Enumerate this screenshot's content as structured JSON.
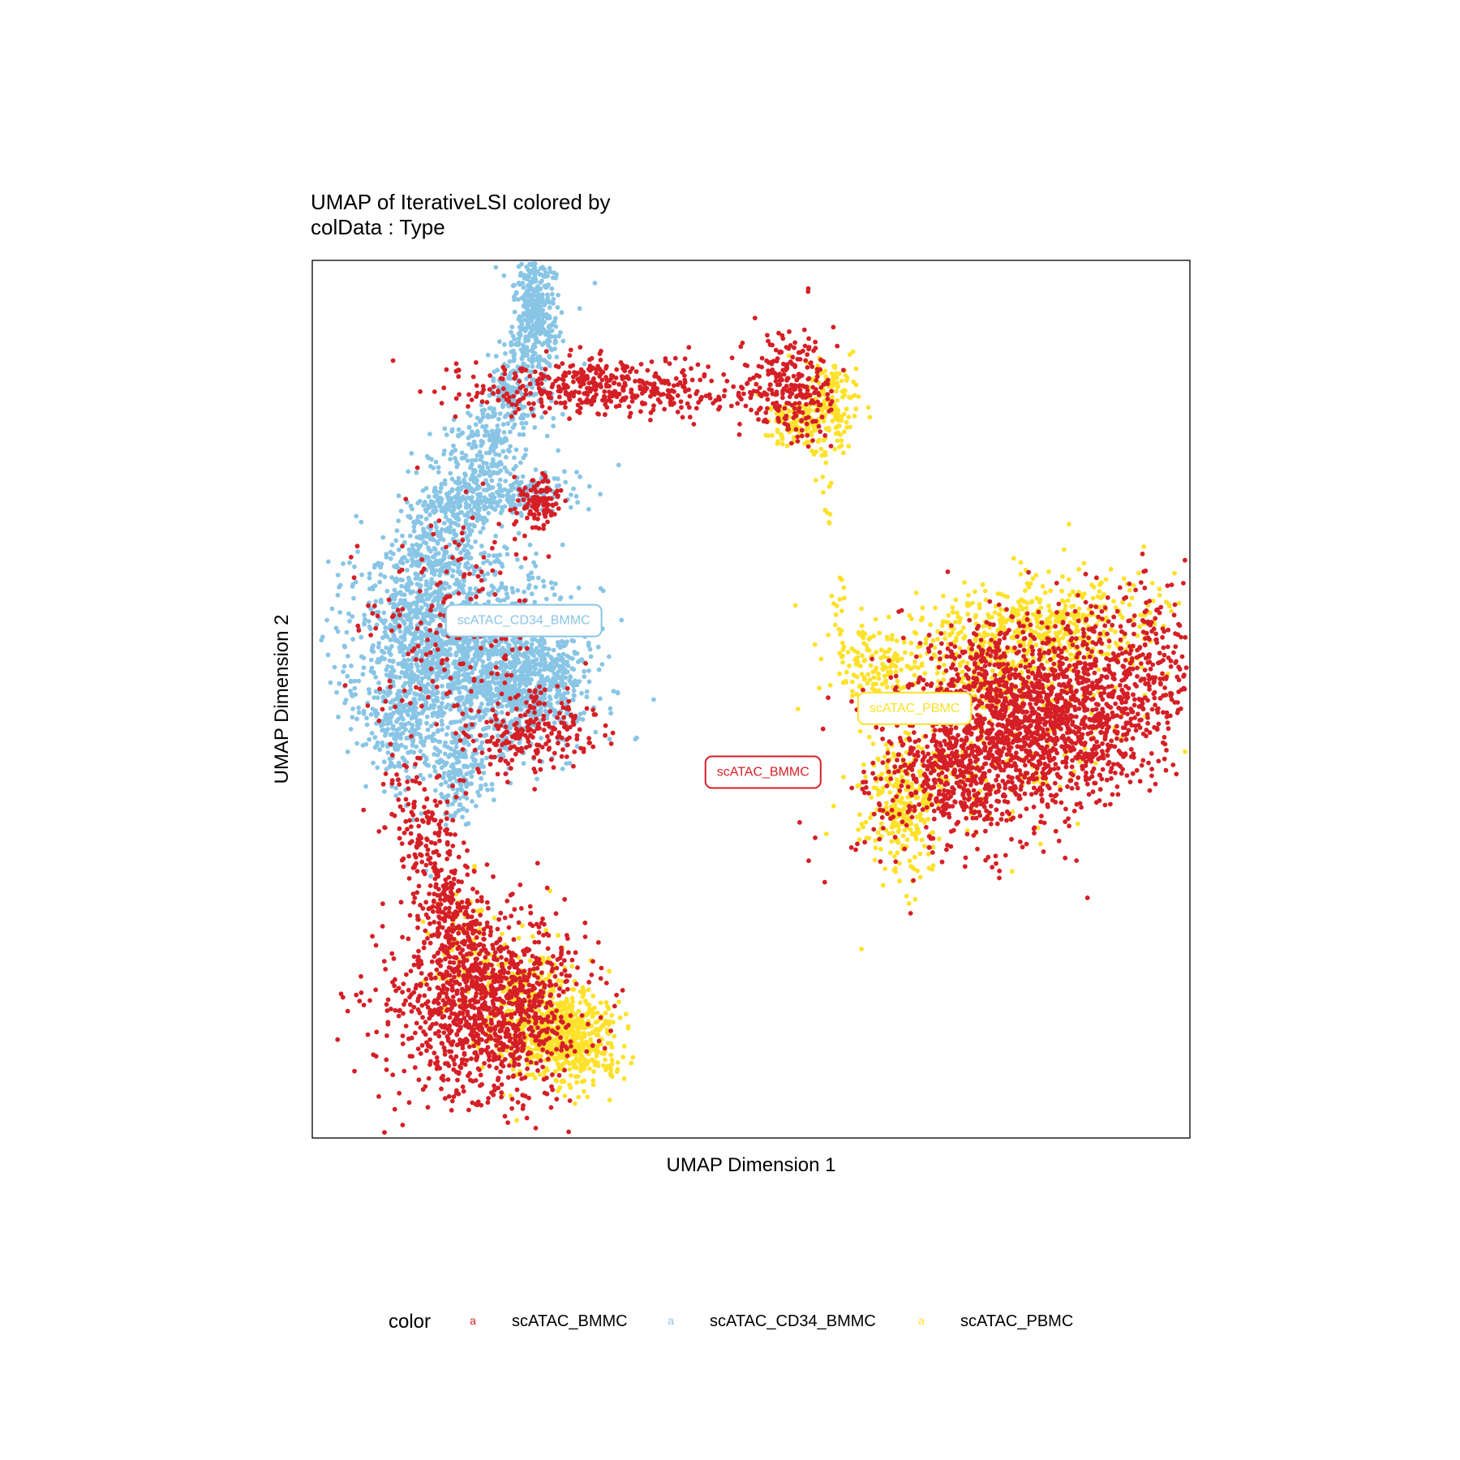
{
  "chart_data": {
    "type": "scatter",
    "title_lines": [
      "UMAP of IterativeLSI  colored by",
      "colData :  Type"
    ],
    "xlabel": "UMAP Dimension 1",
    "ylabel": "UMAP Dimension 2",
    "xlim": [
      -9.6,
      12.4
    ],
    "ylim": [
      -8.6,
      13.4
    ],
    "grid": false,
    "legend_position": "bottom",
    "legend_title": "color",
    "legend_key_glyph": "a",
    "series": [
      {
        "name": "scATAC_BMMC",
        "color": "#D51F26",
        "label": "scATAC_BMMC",
        "label_position": [
          1.7,
          0.6
        ],
        "clusters": [
          {
            "cx": -5.5,
            "cy": -5.3,
            "sx": 1.1,
            "sy": 1.1,
            "rot": -0.3,
            "n": 900
          },
          {
            "cx": -4.6,
            "cy": -5.4,
            "sx": 0.9,
            "sy": 1.2,
            "rot": -0.3,
            "n": 250
          },
          {
            "cx": -6.0,
            "cy": -3.3,
            "sx": 0.35,
            "sy": 0.9,
            "rot": 0.3,
            "n": 180
          },
          {
            "cx": -6.7,
            "cy": -1.3,
            "sx": 0.5,
            "sy": 1.1,
            "rot": 0.2,
            "n": 200
          },
          {
            "cx": -6.0,
            "cy": 4.0,
            "sx": 1.2,
            "sy": 1.6,
            "rot": 0.0,
            "n": 200
          },
          {
            "cx": -3.6,
            "cy": 1.7,
            "sx": 0.6,
            "sy": 0.55,
            "rot": 0.0,
            "n": 130
          },
          {
            "cx": -4.7,
            "cy": 1.3,
            "sx": 0.5,
            "sy": 0.35,
            "rot": 0.0,
            "n": 70
          },
          {
            "cx": -4.0,
            "cy": 7.3,
            "sx": 0.3,
            "sy": 0.3,
            "rot": 0.0,
            "n": 110
          },
          {
            "cx": -2.2,
            "cy": 10.2,
            "sx": 1.9,
            "sy": 0.35,
            "rot": 0.0,
            "n": 480
          },
          {
            "cx": 2.4,
            "cy": 10.3,
            "sx": 0.5,
            "sy": 0.7,
            "rot": 0.0,
            "n": 240
          },
          {
            "cx": 7.3,
            "cy": 2.3,
            "sx": 1.3,
            "sy": 0.9,
            "rot": 0.3,
            "n": 700
          },
          {
            "cx": 9.8,
            "cy": 2.5,
            "sx": 1.7,
            "sy": 1.1,
            "rot": 0.45,
            "n": 950
          },
          {
            "cx": 8.4,
            "cy": 1.0,
            "sx": 2.2,
            "sy": 1.0,
            "rot": 0.45,
            "n": 500
          },
          {
            "cx": 6.6,
            "cy": 0.5,
            "sx": 1.0,
            "sy": 0.8,
            "rot": 0.3,
            "n": 300
          }
        ]
      },
      {
        "name": "scATAC_CD34_BMMC",
        "color": "#89C5E5",
        "label": "scATAC_CD34_BMMC",
        "label_position": [
          -4.3,
          4.4
        ],
        "clusters": [
          {
            "cx": -4.0,
            "cy": 12.2,
            "sx": 0.25,
            "sy": 0.7,
            "rot": 0.0,
            "n": 300
          },
          {
            "cx": -4.4,
            "cy": 10.6,
            "sx": 0.35,
            "sy": 1.0,
            "rot": -0.4,
            "n": 220
          },
          {
            "cx": -5.3,
            "cy": 8.5,
            "sx": 0.5,
            "sy": 1.1,
            "rot": -0.5,
            "n": 300
          },
          {
            "cx": -4.6,
            "cy": 7.5,
            "sx": 0.9,
            "sy": 0.25,
            "rot": 0.2,
            "n": 220
          },
          {
            "cx": -6.6,
            "cy": 6.2,
            "sx": 0.5,
            "sy": 1.3,
            "rot": -0.3,
            "n": 320
          },
          {
            "cx": -6.3,
            "cy": 3.7,
            "sx": 1.2,
            "sy": 1.4,
            "rot": 0.0,
            "n": 1300
          },
          {
            "cx": -4.2,
            "cy": 2.9,
            "sx": 0.8,
            "sy": 0.8,
            "rot": 0.0,
            "n": 750
          },
          {
            "cx": -7.4,
            "cy": 2.0,
            "sx": 0.4,
            "sy": 0.8,
            "rot": 0.0,
            "n": 220
          },
          {
            "cx": -5.9,
            "cy": 0.5,
            "sx": 0.35,
            "sy": 0.6,
            "rot": 0.0,
            "n": 160
          }
        ]
      },
      {
        "name": "scATAC_PBMC",
        "color": "#FEE12A",
        "label": "scATAC_PBMC",
        "label_position": [
          5.5,
          2.2
        ],
        "clusters": [
          {
            "cx": -3.1,
            "cy": -6.1,
            "sx": 0.6,
            "sy": 0.6,
            "rot": 0.0,
            "n": 500
          },
          {
            "cx": -4.2,
            "cy": -5.3,
            "sx": 0.7,
            "sy": 0.8,
            "rot": 0.0,
            "n": 250
          },
          {
            "cx": -5.3,
            "cy": -4.5,
            "sx": 0.8,
            "sy": 0.7,
            "rot": 0.0,
            "n": 60
          },
          {
            "cx": -5.8,
            "cy": -3.2,
            "sx": 0.3,
            "sy": 0.5,
            "rot": 0.0,
            "n": 30
          },
          {
            "cx": 3.3,
            "cy": 9.7,
            "sx": 0.35,
            "sy": 0.6,
            "rot": 0.0,
            "n": 180
          },
          {
            "cx": 2.4,
            "cy": 9.3,
            "sx": 0.35,
            "sy": 0.3,
            "rot": 0.0,
            "n": 80
          },
          {
            "cx": 3.3,
            "cy": 7.4,
            "sx": 0.1,
            "sy": 0.4,
            "rot": 0.0,
            "n": 8
          },
          {
            "cx": 3.6,
            "cy": 5.0,
            "sx": 0.1,
            "sy": 0.7,
            "rot": 0.0,
            "n": 14
          },
          {
            "cx": 4.5,
            "cy": 3.3,
            "sx": 0.5,
            "sy": 0.5,
            "rot": 0.0,
            "n": 120
          },
          {
            "cx": 8.3,
            "cy": 4.0,
            "sx": 1.8,
            "sy": 0.7,
            "rot": 0.2,
            "n": 650
          },
          {
            "cx": 5.2,
            "cy": -0.3,
            "sx": 0.5,
            "sy": 0.9,
            "rot": 0.0,
            "n": 260
          },
          {
            "cx": 7.5,
            "cy": 1.5,
            "sx": 2.0,
            "sy": 1.3,
            "rot": 0.45,
            "n": 220
          }
        ]
      }
    ]
  }
}
